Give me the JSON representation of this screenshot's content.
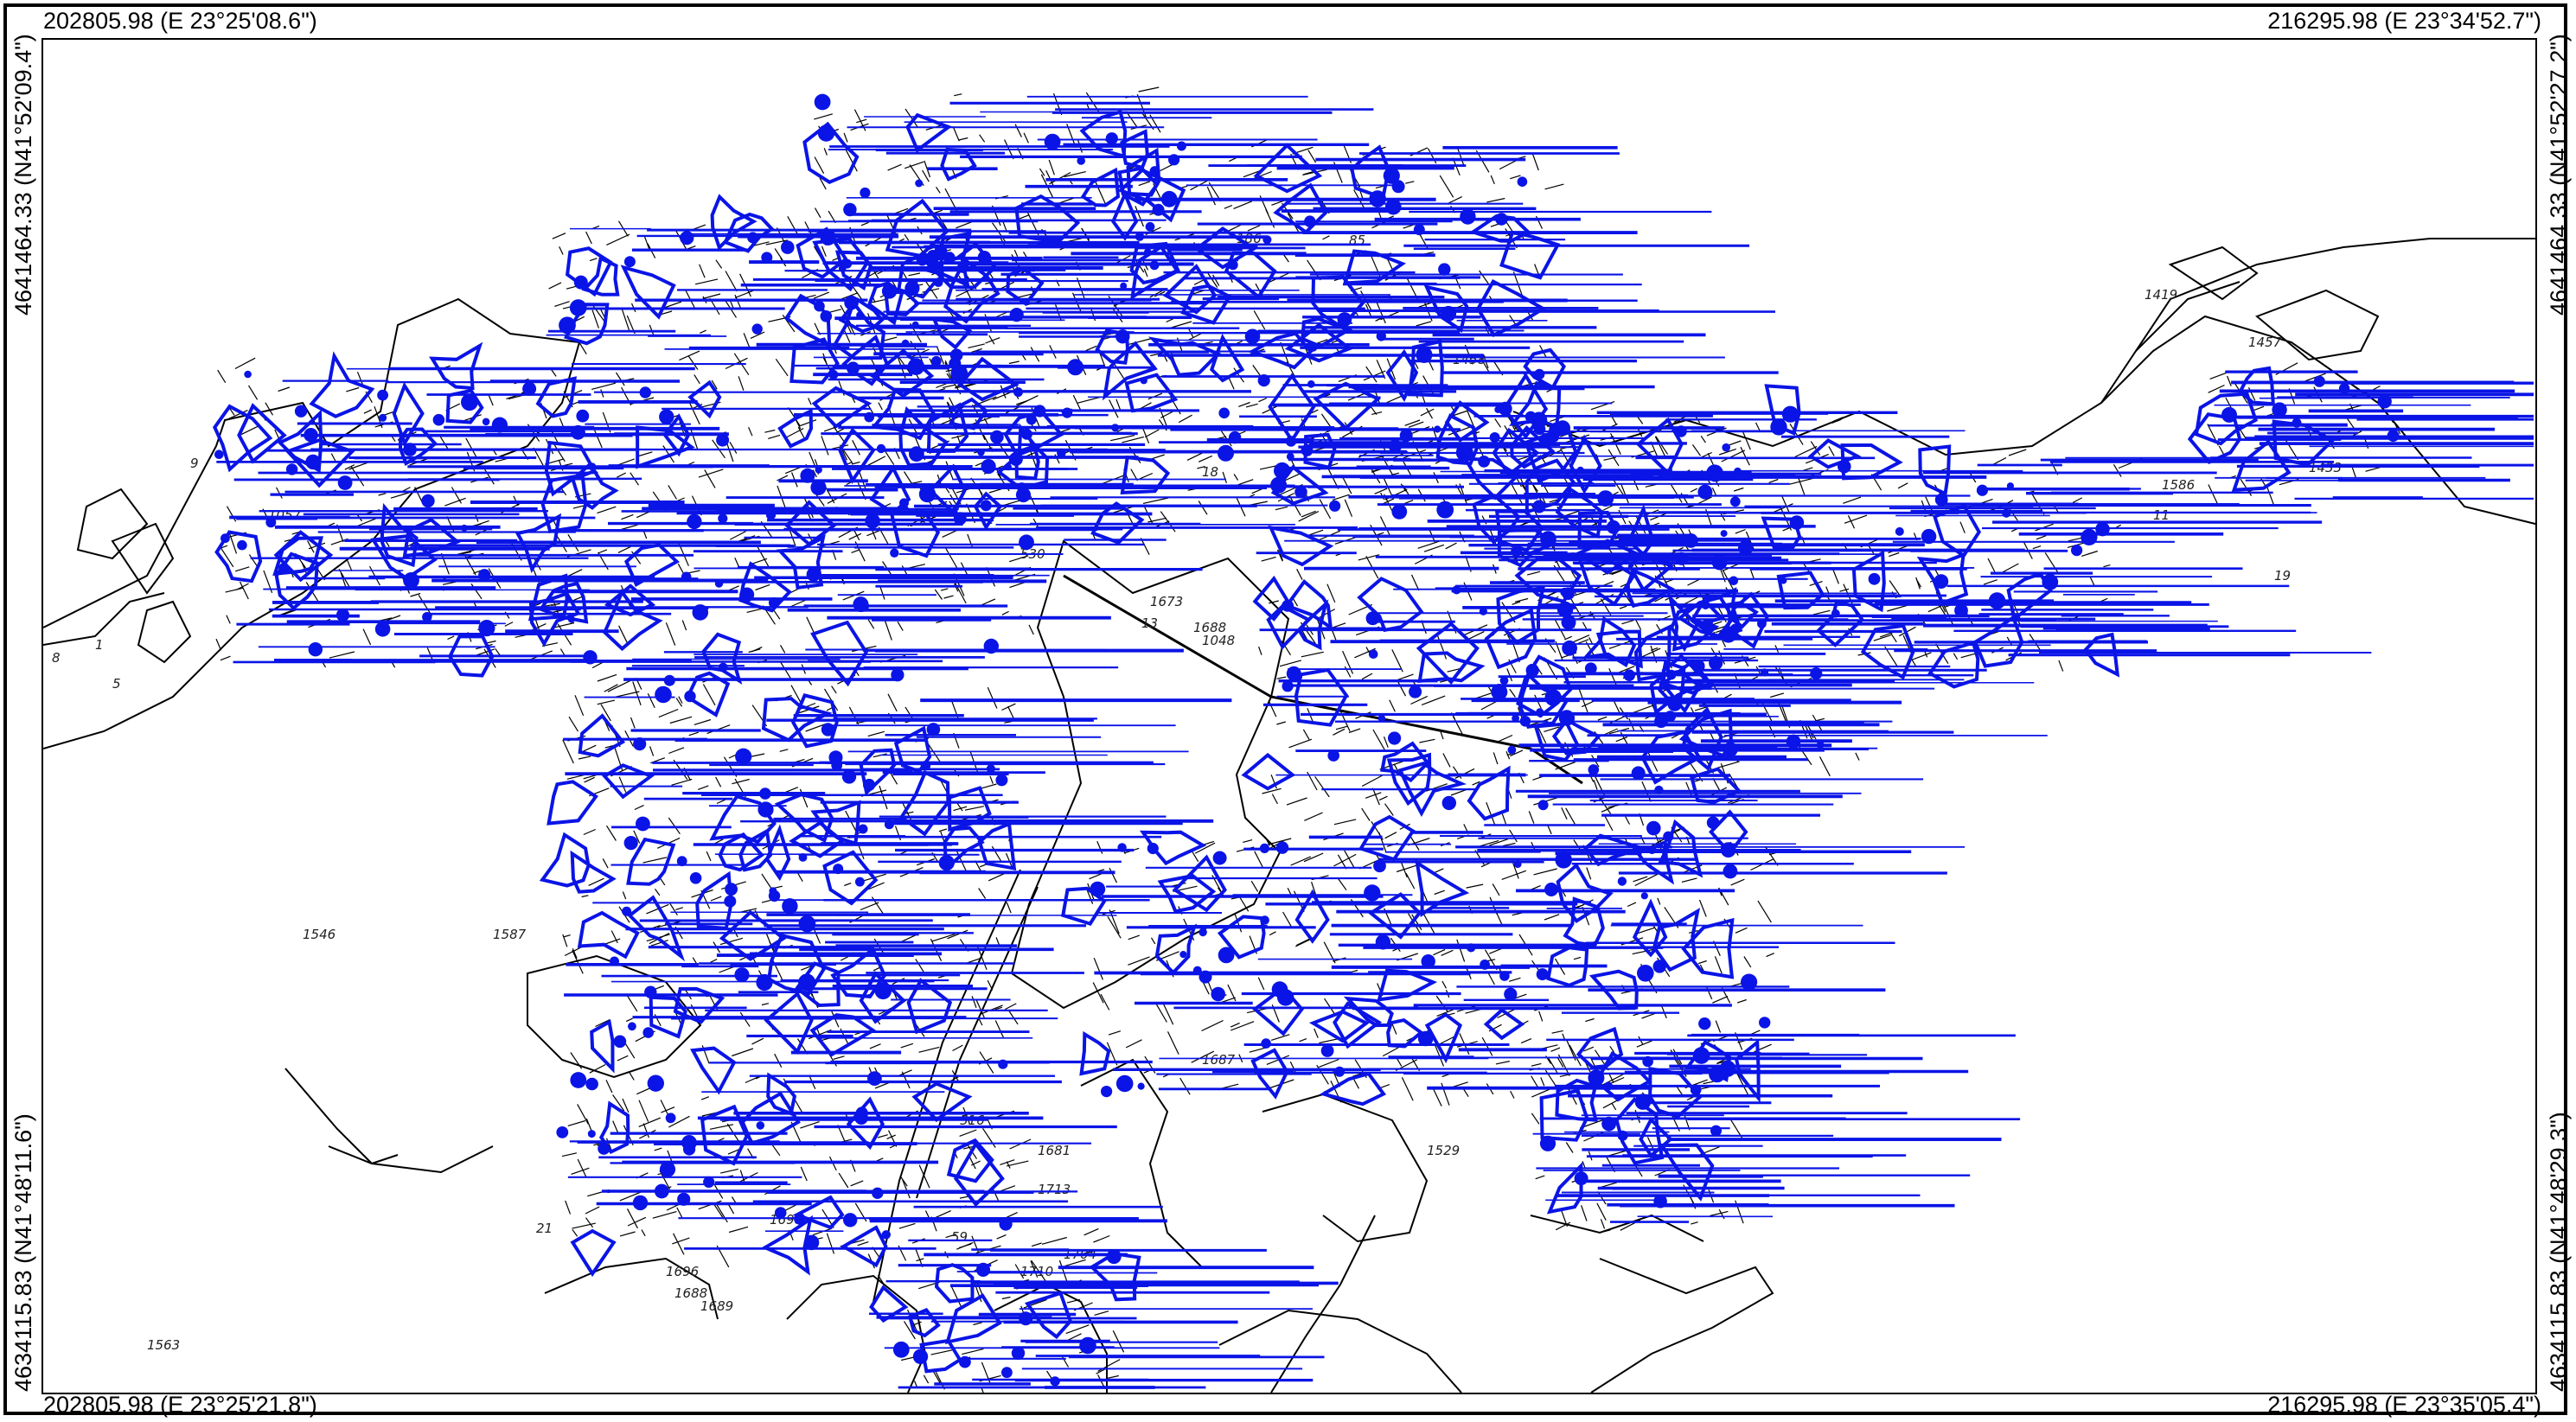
{
  "corners": {
    "top_left": "202805.98 (E 23°25'08.6\")",
    "top_right": "216295.98 (E 23°34'52.7\")",
    "bottom_left": "202805.98 (E 23°25'21.8\")",
    "bottom_right": "216295.98 (E 23°35'05.4\")"
  },
  "side_labels": {
    "left_top": "4641464.33 (N41°52'09.4\")",
    "left_bottom": "4634115.83 (N41°48'11.6\")",
    "right_top": "4641464.33 (N41°52'27.2\")",
    "right_bottom": "4634115.83 (N41°48'29.3\")"
  },
  "parcel_labels": [
    {
      "text": "1419"
    },
    {
      "text": "1457"
    },
    {
      "text": "1433"
    },
    {
      "text": "1546"
    },
    {
      "text": "1587"
    },
    {
      "text": "1529"
    },
    {
      "text": "1696"
    },
    {
      "text": "1688"
    },
    {
      "text": "1689"
    },
    {
      "text": "1563"
    },
    {
      "text": "516"
    },
    {
      "text": "1681"
    },
    {
      "text": "1713"
    },
    {
      "text": "1710"
    },
    {
      "text": "1704"
    },
    {
      "text": "1698"
    },
    {
      "text": "1687"
    },
    {
      "text": "18"
    },
    {
      "text": "186"
    },
    {
      "text": "85"
    },
    {
      "text": "1057"
    },
    {
      "text": "1"
    },
    {
      "text": "5"
    },
    {
      "text": "8"
    },
    {
      "text": "9"
    },
    {
      "text": "13"
    },
    {
      "text": "1673"
    },
    {
      "text": "1688"
    },
    {
      "text": "1048"
    },
    {
      "text": "21"
    },
    {
      "text": "59"
    },
    {
      "text": "530"
    },
    {
      "text": "1586"
    },
    {
      "text": "11"
    },
    {
      "text": "19"
    },
    {
      "text": "1458"
    }
  ],
  "colors": {
    "overlay": "#0a14e6",
    "parcel_lines": "#000000",
    "background": "#ffffff"
  }
}
